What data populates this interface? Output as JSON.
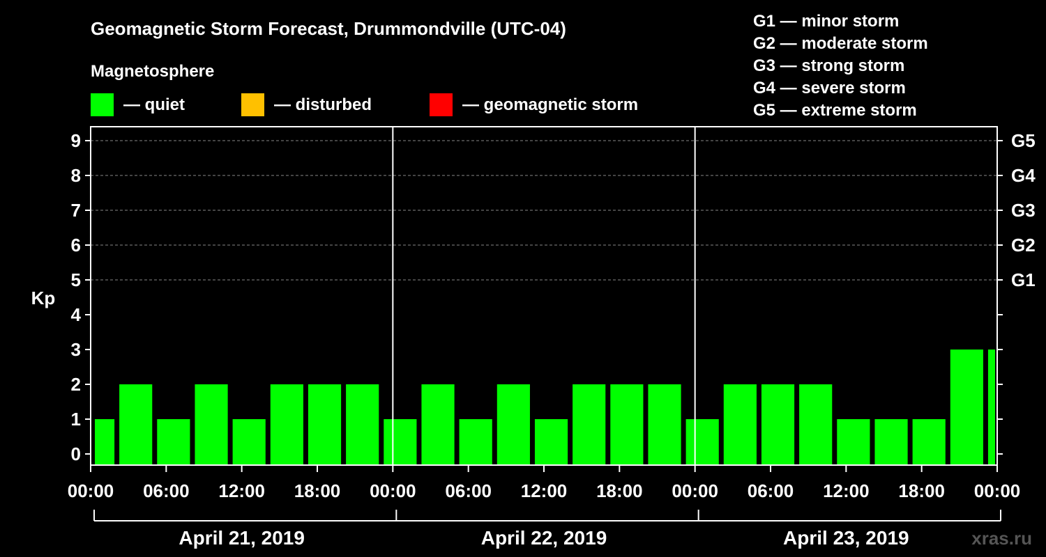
{
  "chart_data": {
    "type": "bar",
    "title": "Geomagnetic Storm Forecast, Drummondville (UTC-04)",
    "ylabel": "Kp",
    "ylim": [
      0,
      9
    ],
    "yticks": [
      "0",
      "1",
      "2",
      "3",
      "4",
      "5",
      "6",
      "7",
      "8",
      "9"
    ],
    "right_axis_labels": [
      {
        "kp": 5,
        "label": "G1"
      },
      {
        "kp": 6,
        "label": "G2"
      },
      {
        "kp": 7,
        "label": "G3"
      },
      {
        "kp": 8,
        "label": "G4"
      },
      {
        "kp": 9,
        "label": "G5"
      }
    ],
    "x_tick_labels": [
      "00:00",
      "06:00",
      "12:00",
      "18:00",
      "00:00",
      "06:00",
      "12:00",
      "18:00",
      "00:00",
      "06:00",
      "12:00",
      "18:00",
      "00:00"
    ],
    "days": [
      "April 21, 2019",
      "April 22, 2019",
      "April 23, 2019"
    ],
    "interval_hours": 3,
    "first_interval_start_hour": -1,
    "values": [
      1,
      2,
      1,
      2,
      1,
      2,
      2,
      2,
      1,
      2,
      1,
      2,
      1,
      2,
      2,
      2,
      1,
      2,
      2,
      2,
      1,
      1,
      1,
      3,
      3
    ],
    "grid": "dashed horizontal at Kp 5-9",
    "legend": {
      "heading": "Magnetosphere",
      "placement": "top-left",
      "items": [
        {
          "label": "— quiet",
          "color": "#00ff00"
        },
        {
          "label": "— disturbed",
          "color": "#ffc000"
        },
        {
          "label": "— geomagnetic storm",
          "color": "#ff0000"
        }
      ]
    },
    "storm_scale": [
      "G1 — minor storm",
      "G2 — moderate storm",
      "G3 — strong storm",
      "G4 — severe storm",
      "G5 — extreme storm"
    ],
    "watermark": "xras.ru"
  }
}
